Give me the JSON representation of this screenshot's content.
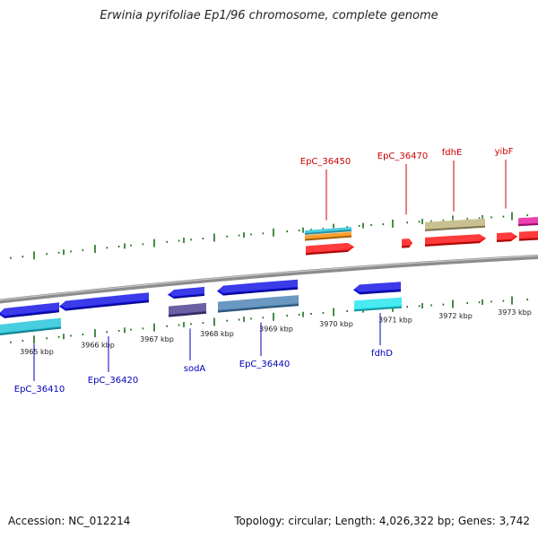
{
  "title": "Erwinia pyrifoliae Ep1/96 chromosome, complete genome",
  "footer": {
    "accession": "Accession: NC_012214",
    "topology": "Topology: circular; Length: 4,026,322 bp; Genes: 3,742"
  },
  "colors": {
    "upper_label": "#cc0000",
    "lower_label": "#0000bb",
    "tick": "#1a6e1a",
    "backbone": "#8c8c8c"
  },
  "ticks": [
    {
      "label": "3965 kbp"
    },
    {
      "label": "3966 kbp"
    },
    {
      "label": "3967 kbp"
    },
    {
      "label": "3968 kbp"
    },
    {
      "label": "3969 kbp"
    },
    {
      "label": "3970 kbp"
    },
    {
      "label": "3971 kbp"
    },
    {
      "label": "3972 kbp"
    },
    {
      "label": "3973 kbp"
    }
  ],
  "gene_labels": [
    {
      "text": "EpC_36450",
      "strand": "upper"
    },
    {
      "text": "EpC_36470",
      "strand": "upper"
    },
    {
      "text": "fdhE",
      "strand": "upper"
    },
    {
      "text": "yibF",
      "strand": "upper"
    },
    {
      "text": "EpC_36410",
      "strand": "lower"
    },
    {
      "text": "EpC_36420",
      "strand": "lower"
    },
    {
      "text": "sodA",
      "strand": "lower"
    },
    {
      "text": "EpC_36440",
      "strand": "lower"
    },
    {
      "text": "fdhD",
      "strand": "lower"
    }
  ],
  "upper_features": [
    {
      "color": "#22c4d8"
    },
    {
      "color": "#ff8c00"
    },
    {
      "color": "#ff1010"
    },
    {
      "color": "#ff1010"
    },
    {
      "color": "#bdb37a"
    },
    {
      "color": "#ff1010"
    },
    {
      "color": "#ff1010"
    },
    {
      "color": "#ff1010"
    },
    {
      "color": "#e61aa0"
    }
  ],
  "lower_features": [
    {
      "color": "#1010e6"
    },
    {
      "color": "#22c4d8"
    },
    {
      "color": "#1010e6"
    },
    {
      "color": "#1010e6"
    },
    {
      "color": "#4a3d8f"
    },
    {
      "color": "#1010e6"
    },
    {
      "color": "#4a82b4"
    },
    {
      "color": "#1010e6"
    },
    {
      "color": "#22e6f0"
    }
  ]
}
